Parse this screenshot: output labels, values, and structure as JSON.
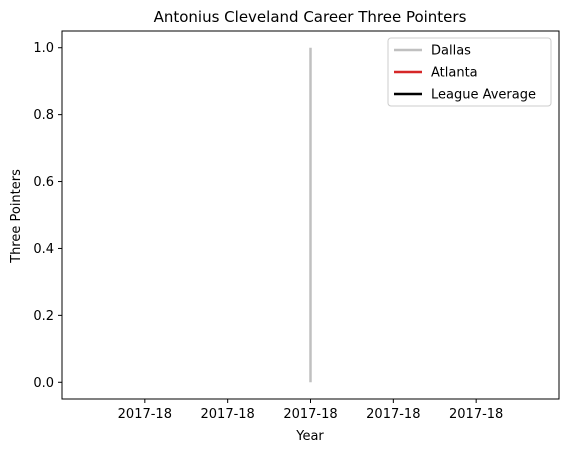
{
  "chart_data": {
    "type": "line",
    "title": "Antonius Cleveland Career Three Pointers",
    "xlabel": "Year",
    "ylabel": "Three Pointers",
    "x_tick_labels": [
      "2017-18",
      "2017-18",
      "2017-18",
      "2017-18",
      "2017-18"
    ],
    "y_ticks": [
      0.0,
      0.2,
      0.4,
      0.6,
      0.8,
      1.0
    ],
    "y_tick_labels": [
      "0.0",
      "0.2",
      "0.4",
      "0.6",
      "0.8",
      "1.0"
    ],
    "ylim": [
      -0.05,
      1.05
    ],
    "grid": false,
    "legend_position": "top-right",
    "series": [
      {
        "name": "Dallas",
        "color": "#c0c0c0",
        "points": [
          {
            "x": "2017-18",
            "y": 0
          },
          {
            "x": "2017-18",
            "y": 1
          }
        ]
      },
      {
        "name": "Atlanta",
        "color": "#d62728",
        "points": []
      },
      {
        "name": "League Average",
        "color": "#000000",
        "points": []
      }
    ]
  }
}
